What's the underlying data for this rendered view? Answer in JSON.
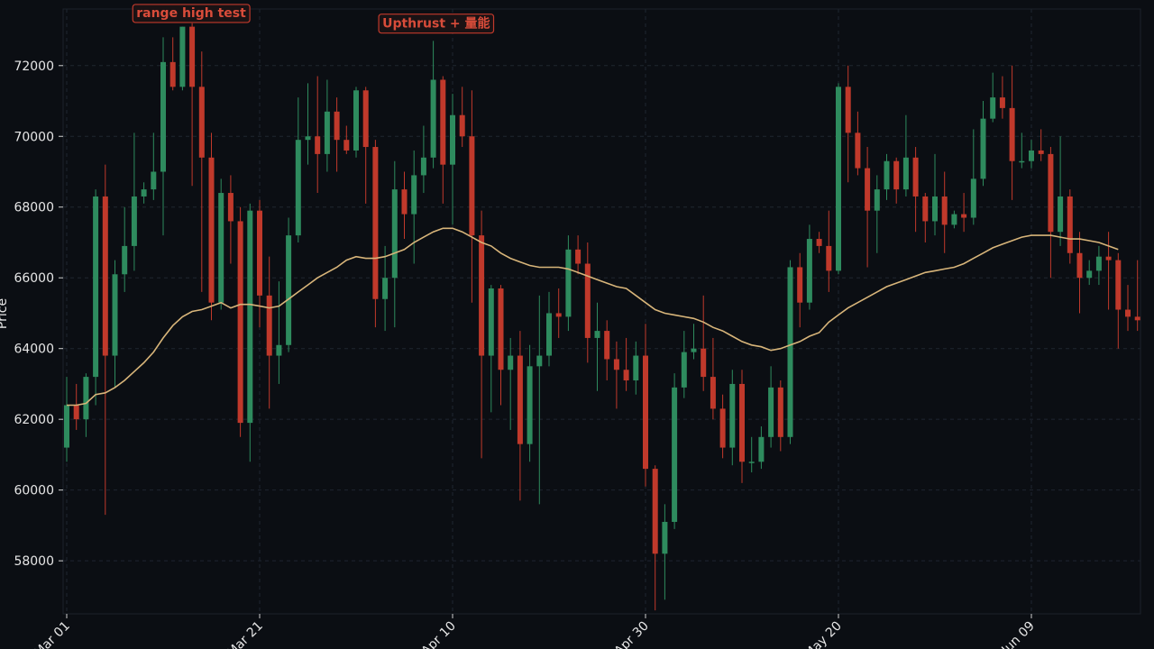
{
  "chart_data": {
    "type": "candlestick",
    "ylabel": "Price",
    "ylim": [
      56500,
      73600
    ],
    "yticks": [
      58000,
      60000,
      62000,
      64000,
      66000,
      68000,
      70000,
      72000
    ],
    "ytick_labels": [
      "58000",
      "60000",
      "62000",
      "64000",
      "66000",
      "68000",
      "70000",
      "72000"
    ],
    "xticks": [
      {
        "index": 0,
        "label": "Mar 01"
      },
      {
        "index": 20,
        "label": "Mar 21"
      },
      {
        "index": 40,
        "label": "Apr 10"
      },
      {
        "index": 60,
        "label": "Apr 30"
      },
      {
        "index": 80,
        "label": "May 20"
      },
      {
        "index": 100,
        "label": "Jun 09"
      }
    ],
    "grid": true,
    "colors": {
      "up": "#2e8b5e",
      "down": "#c0392b",
      "ma": "#d8b57a",
      "annotation": "#d94c3a"
    },
    "annotations": [
      {
        "text": "range high test",
        "index": 12.9,
        "price": 73500
      },
      {
        "text": "Upthrust + 量能",
        "index": 38.3,
        "price": 73200
      }
    ],
    "candles": [
      {
        "date": "Mar 01",
        "open": 61200,
        "high": 63200,
        "low": 60800,
        "close": 62400
      },
      {
        "date": "Mar 02",
        "open": 62400,
        "high": 63000,
        "low": 61700,
        "close": 62000
      },
      {
        "date": "Mar 03",
        "open": 62000,
        "high": 63300,
        "low": 61500,
        "close": 63200
      },
      {
        "date": "Mar 04",
        "open": 63200,
        "high": 68500,
        "low": 62400,
        "close": 68300
      },
      {
        "date": "Mar 05",
        "open": 68300,
        "high": 69200,
        "low": 59300,
        "close": 63800
      },
      {
        "date": "Mar 06",
        "open": 63800,
        "high": 66500,
        "low": 62900,
        "close": 66100
      },
      {
        "date": "Mar 07",
        "open": 66100,
        "high": 68000,
        "low": 65600,
        "close": 66900
      },
      {
        "date": "Mar 08",
        "open": 66900,
        "high": 70100,
        "low": 66200,
        "close": 68300
      },
      {
        "date": "Mar 09",
        "open": 68300,
        "high": 68700,
        "low": 68100,
        "close": 68500
      },
      {
        "date": "Mar 10",
        "open": 68500,
        "high": 70100,
        "low": 68200,
        "close": 69000
      },
      {
        "date": "Mar 11",
        "open": 69000,
        "high": 72800,
        "low": 67200,
        "close": 72100
      },
      {
        "date": "Mar 12",
        "open": 72100,
        "high": 72800,
        "low": 71300,
        "close": 71400
      },
      {
        "date": "Mar 13",
        "open": 71400,
        "high": 73100,
        "low": 71300,
        "close": 73100
      },
      {
        "date": "Mar 14",
        "open": 73100,
        "high": 73200,
        "low": 68600,
        "close": 71400
      },
      {
        "date": "Mar 15",
        "open": 71400,
        "high": 72400,
        "low": 65600,
        "close": 69400
      },
      {
        "date": "Mar 16",
        "open": 69400,
        "high": 70100,
        "low": 64800,
        "close": 65300
      },
      {
        "date": "Mar 17",
        "open": 65300,
        "high": 68800,
        "low": 65100,
        "close": 68400
      },
      {
        "date": "Mar 18",
        "open": 68400,
        "high": 68900,
        "low": 66400,
        "close": 67600
      },
      {
        "date": "Mar 19",
        "open": 67600,
        "high": 68000,
        "low": 61500,
        "close": 61900
      },
      {
        "date": "Mar 20",
        "open": 61900,
        "high": 68100,
        "low": 60800,
        "close": 67900
      },
      {
        "date": "Mar 21",
        "open": 67900,
        "high": 68200,
        "low": 64600,
        "close": 65500
      },
      {
        "date": "Mar 22",
        "open": 65500,
        "high": 66600,
        "low": 62300,
        "close": 63800
      },
      {
        "date": "Mar 23",
        "open": 63800,
        "high": 65900,
        "low": 63000,
        "close": 64100
      },
      {
        "date": "Mar 24",
        "open": 64100,
        "high": 67700,
        "low": 63900,
        "close": 67200
      },
      {
        "date": "Mar 25",
        "open": 67200,
        "high": 71100,
        "low": 67000,
        "close": 69900
      },
      {
        "date": "Mar 26",
        "open": 69900,
        "high": 71500,
        "low": 69200,
        "close": 70000
      },
      {
        "date": "Mar 27",
        "open": 70000,
        "high": 71700,
        "low": 68400,
        "close": 69500
      },
      {
        "date": "Mar 28",
        "open": 69500,
        "high": 71600,
        "low": 69000,
        "close": 70700
      },
      {
        "date": "Mar 29",
        "open": 70700,
        "high": 71100,
        "low": 69000,
        "close": 69900
      },
      {
        "date": "Mar 30",
        "open": 69900,
        "high": 70300,
        "low": 69500,
        "close": 69600
      },
      {
        "date": "Mar 31",
        "open": 69600,
        "high": 71400,
        "low": 69400,
        "close": 71300
      },
      {
        "date": "Apr 01",
        "open": 71300,
        "high": 71400,
        "low": 68100,
        "close": 69700
      },
      {
        "date": "Apr 02",
        "open": 69700,
        "high": 69900,
        "low": 64600,
        "close": 65400
      },
      {
        "date": "Apr 03",
        "open": 65400,
        "high": 66900,
        "low": 64500,
        "close": 66000
      },
      {
        "date": "Apr 04",
        "open": 66000,
        "high": 69300,
        "low": 64600,
        "close": 68500
      },
      {
        "date": "Apr 05",
        "open": 68500,
        "high": 69000,
        "low": 67100,
        "close": 67800
      },
      {
        "date": "Apr 06",
        "open": 67800,
        "high": 69600,
        "low": 66400,
        "close": 68900
      },
      {
        "date": "Apr 07",
        "open": 68900,
        "high": 70300,
        "low": 68400,
        "close": 69400
      },
      {
        "date": "Apr 08",
        "open": 69400,
        "high": 72700,
        "low": 69100,
        "close": 71600
      },
      {
        "date": "Apr 09",
        "open": 71600,
        "high": 71700,
        "low": 68100,
        "close": 69200
      },
      {
        "date": "Apr 10",
        "open": 69200,
        "high": 71200,
        "low": 67500,
        "close": 70600
      },
      {
        "date": "Apr 11",
        "open": 70600,
        "high": 71400,
        "low": 69700,
        "close": 70000
      },
      {
        "date": "Apr 12",
        "open": 70000,
        "high": 71300,
        "low": 65300,
        "close": 67200
      },
      {
        "date": "Apr 13",
        "open": 67200,
        "high": 67900,
        "low": 60900,
        "close": 63800
      },
      {
        "date": "Apr 14",
        "open": 63800,
        "high": 65800,
        "low": 62200,
        "close": 65700
      },
      {
        "date": "Apr 15",
        "open": 65700,
        "high": 65800,
        "low": 62400,
        "close": 63400
      },
      {
        "date": "Apr 16",
        "open": 63400,
        "high": 64300,
        "low": 61700,
        "close": 63800
      },
      {
        "date": "Apr 17",
        "open": 63800,
        "high": 64500,
        "low": 59700,
        "close": 61300
      },
      {
        "date": "Apr 18",
        "open": 61300,
        "high": 64100,
        "low": 60800,
        "close": 63500
      },
      {
        "date": "Apr 19",
        "open": 63500,
        "high": 65500,
        "low": 59600,
        "close": 63800
      },
      {
        "date": "Apr 20",
        "open": 63800,
        "high": 65600,
        "low": 63500,
        "close": 65000
      },
      {
        "date": "Apr 21",
        "open": 65000,
        "high": 65700,
        "low": 64300,
        "close": 64900
      },
      {
        "date": "Apr 22",
        "open": 64900,
        "high": 67200,
        "low": 64500,
        "close": 66800
      },
      {
        "date": "Apr 23",
        "open": 66800,
        "high": 67200,
        "low": 66100,
        "close": 66400
      },
      {
        "date": "Apr 24",
        "open": 66400,
        "high": 67000,
        "low": 63600,
        "close": 64300
      },
      {
        "date": "Apr 25",
        "open": 64300,
        "high": 65300,
        "low": 62800,
        "close": 64500
      },
      {
        "date": "Apr 26",
        "open": 64500,
        "high": 64800,
        "low": 63100,
        "close": 63700
      },
      {
        "date": "Apr 27",
        "open": 63700,
        "high": 64200,
        "low": 62300,
        "close": 63400
      },
      {
        "date": "Apr 28",
        "open": 63400,
        "high": 64300,
        "low": 62800,
        "close": 63100
      },
      {
        "date": "Apr 29",
        "open": 63100,
        "high": 64200,
        "low": 62700,
        "close": 63800
      },
      {
        "date": "Apr 30",
        "open": 63800,
        "high": 64700,
        "low": 60100,
        "close": 60600
      },
      {
        "date": "May 01",
        "open": 60600,
        "high": 60700,
        "low": 56600,
        "close": 58200
      },
      {
        "date": "May 02",
        "open": 58200,
        "high": 59600,
        "low": 56900,
        "close": 59100
      },
      {
        "date": "May 03",
        "open": 59100,
        "high": 63300,
        "low": 58900,
        "close": 62900
      },
      {
        "date": "May 04",
        "open": 62900,
        "high": 64500,
        "low": 62600,
        "close": 63900
      },
      {
        "date": "May 05",
        "open": 63900,
        "high": 64700,
        "low": 63700,
        "close": 64000
      },
      {
        "date": "May 06",
        "open": 64000,
        "high": 65500,
        "low": 62800,
        "close": 63200
      },
      {
        "date": "May 07",
        "open": 63200,
        "high": 64300,
        "low": 62000,
        "close": 62300
      },
      {
        "date": "May 08",
        "open": 62300,
        "high": 62700,
        "low": 60900,
        "close": 61200
      },
      {
        "date": "May 09",
        "open": 61200,
        "high": 63400,
        "low": 60700,
        "close": 63000
      },
      {
        "date": "May 10",
        "open": 63000,
        "high": 63400,
        "low": 60200,
        "close": 60800
      },
      {
        "date": "May 11",
        "open": 60800,
        "high": 61500,
        "low": 60500,
        "close": 60800
      },
      {
        "date": "May 12",
        "open": 60800,
        "high": 61800,
        "low": 60600,
        "close": 61500
      },
      {
        "date": "May 13",
        "open": 61500,
        "high": 63500,
        "low": 61200,
        "close": 62900
      },
      {
        "date": "May 14",
        "open": 62900,
        "high": 63100,
        "low": 61100,
        "close": 61500
      },
      {
        "date": "May 15",
        "open": 61500,
        "high": 66500,
        "low": 61300,
        "close": 66300
      },
      {
        "date": "May 16",
        "open": 66300,
        "high": 66700,
        "low": 64600,
        "close": 65300
      },
      {
        "date": "May 17",
        "open": 65300,
        "high": 67500,
        "low": 65100,
        "close": 67100
      },
      {
        "date": "May 18",
        "open": 67100,
        "high": 67300,
        "low": 66700,
        "close": 66900
      },
      {
        "date": "May 19",
        "open": 66900,
        "high": 67900,
        "low": 65600,
        "close": 66200
      },
      {
        "date": "May 20",
        "open": 66200,
        "high": 71500,
        "low": 66100,
        "close": 71400
      },
      {
        "date": "May 21",
        "open": 71400,
        "high": 72000,
        "low": 68700,
        "close": 70100
      },
      {
        "date": "May 22",
        "open": 70100,
        "high": 70700,
        "low": 68900,
        "close": 69100
      },
      {
        "date": "May 23",
        "open": 69100,
        "high": 69700,
        "low": 66300,
        "close": 67900
      },
      {
        "date": "May 24",
        "open": 67900,
        "high": 68900,
        "low": 66700,
        "close": 68500
      },
      {
        "date": "May 25",
        "open": 68500,
        "high": 69500,
        "low": 68200,
        "close": 69300
      },
      {
        "date": "May 26",
        "open": 69300,
        "high": 69400,
        "low": 68100,
        "close": 68500
      },
      {
        "date": "May 27",
        "open": 68500,
        "high": 70600,
        "low": 68300,
        "close": 69400
      },
      {
        "date": "May 28",
        "open": 69400,
        "high": 69700,
        "low": 67300,
        "close": 68300
      },
      {
        "date": "May 29",
        "open": 68300,
        "high": 68400,
        "low": 67000,
        "close": 67600
      },
      {
        "date": "May 30",
        "open": 67600,
        "high": 69500,
        "low": 67200,
        "close": 68300
      },
      {
        "date": "May 31",
        "open": 68300,
        "high": 69000,
        "low": 66700,
        "close": 67500
      },
      {
        "date": "Jun 01",
        "open": 67500,
        "high": 67900,
        "low": 67400,
        "close": 67800
      },
      {
        "date": "Jun 02",
        "open": 67800,
        "high": 68400,
        "low": 67300,
        "close": 67700
      },
      {
        "date": "Jun 03",
        "open": 67700,
        "high": 70200,
        "low": 67500,
        "close": 68800
      },
      {
        "date": "Jun 04",
        "open": 68800,
        "high": 71000,
        "low": 68600,
        "close": 70500
      },
      {
        "date": "Jun 05",
        "open": 70500,
        "high": 71800,
        "low": 70400,
        "close": 71100
      },
      {
        "date": "Jun 06",
        "open": 71100,
        "high": 71700,
        "low": 70500,
        "close": 70800
      },
      {
        "date": "Jun 07",
        "open": 70800,
        "high": 72000,
        "low": 68200,
        "close": 69300
      },
      {
        "date": "Jun 08",
        "open": 69300,
        "high": 70100,
        "low": 69100,
        "close": 69300
      },
      {
        "date": "Jun 09",
        "open": 69300,
        "high": 69900,
        "low": 69100,
        "close": 69600
      },
      {
        "date": "Jun 10",
        "open": 69600,
        "high": 70200,
        "low": 69300,
        "close": 69500
      },
      {
        "date": "Jun 11",
        "open": 69500,
        "high": 69700,
        "low": 66000,
        "close": 67300
      },
      {
        "date": "Jun 12",
        "open": 67300,
        "high": 70000,
        "low": 66900,
        "close": 68300
      },
      {
        "date": "Jun 13",
        "open": 68300,
        "high": 68500,
        "low": 66400,
        "close": 66700
      },
      {
        "date": "Jun 14",
        "open": 66700,
        "high": 67300,
        "low": 65000,
        "close": 66000
      },
      {
        "date": "Jun 15",
        "open": 66000,
        "high": 66500,
        "low": 65800,
        "close": 66200
      },
      {
        "date": "Jun 16",
        "open": 66200,
        "high": 66900,
        "low": 65800,
        "close": 66600
      },
      {
        "date": "Jun 17",
        "open": 66600,
        "high": 67300,
        "low": 65100,
        "close": 66500
      },
      {
        "date": "Jun 18",
        "open": 66500,
        "high": 66700,
        "low": 64000,
        "close": 65100
      },
      {
        "date": "Jun 19",
        "open": 65100,
        "high": 65800,
        "low": 64500,
        "close": 64900
      },
      {
        "date": "Jun 20",
        "open": 64900,
        "high": 66500,
        "low": 64500,
        "close": 64800
      }
    ],
    "ma": [
      62400,
      62400,
      62450,
      62700,
      62750,
      62900,
      63100,
      63350,
      63600,
      63900,
      64300,
      64650,
      64900,
      65050,
      65100,
      65200,
      65300,
      65150,
      65250,
      65250,
      65200,
      65150,
      65200,
      65400,
      65600,
      65800,
      66000,
      66150,
      66300,
      66500,
      66600,
      66550,
      66550,
      66600,
      66700,
      66800,
      67000,
      67150,
      67300,
      67400,
      67400,
      67300,
      67150,
      67000,
      66900,
      66700,
      66550,
      66450,
      66350,
      66300,
      66300,
      66300,
      66250,
      66150,
      66050,
      65950,
      65850,
      65750,
      65700,
      65500,
      65300,
      65100,
      65000,
      64950,
      64900,
      64850,
      64750,
      64600,
      64500,
      64350,
      64200,
      64100,
      64050,
      63950,
      64000,
      64100,
      64200,
      64350,
      64450,
      64750,
      64950,
      65150,
      65300,
      65450,
      65600,
      65750,
      65850,
      65950,
      66050,
      66150,
      66200,
      66250,
      66300,
      66400,
      66550,
      66700,
      66850,
      66950,
      67050,
      67150,
      67200,
      67200,
      67200,
      67150,
      67100,
      67100,
      67050,
      67000,
      66900,
      66800
    ]
  }
}
